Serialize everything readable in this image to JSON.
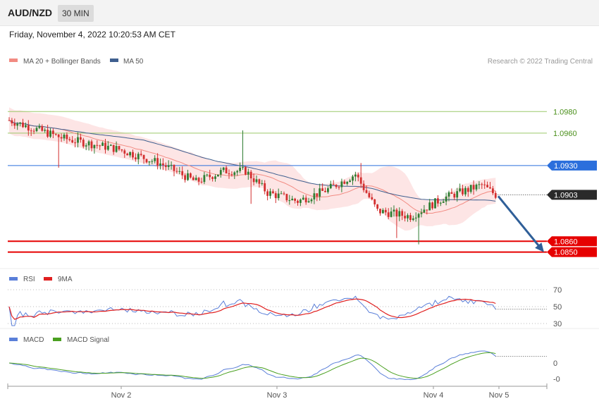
{
  "header": {
    "symbol": "AUD/NZD",
    "timeframe": "30 MIN",
    "datetime": "Friday, November 4, 2022 10:20:53 AM CET"
  },
  "main_legend": {
    "ma20_bb": "MA 20 + Bollinger Bands",
    "ma50": "MA 50",
    "credit": "Research © 2022 Trading Central"
  },
  "rsi_legend": {
    "rsi": "RSI",
    "ma": "9MA"
  },
  "macd_legend": {
    "macd": "MACD",
    "signal": "MACD Signal"
  },
  "colors": {
    "bull": "#2e7d32",
    "bear": "#d32f2f",
    "bollinger": "#fde0e0",
    "ma20": "#f28b82",
    "ma50": "#3f5f8f",
    "green_level": "#9cc96a",
    "blue_level": "#2b6fdc",
    "red_level": "#e60000",
    "arrow": "#2f5f98",
    "rsi": "#5a7fd9",
    "rsi_ma": "#e02020",
    "macd": "#5a7fd9",
    "macd_signal": "#4aa020"
  },
  "x_axis": {
    "labels": [
      "Nov 2",
      "Nov 3",
      "Nov 4",
      "Nov 5"
    ]
  },
  "chart_data": [
    {
      "type": "candlestick",
      "ylim": [
        1.0838,
        1.1018
      ],
      "levels": [
        {
          "value": 1.098,
          "label": "1.0980",
          "style": "green"
        },
        {
          "value": 1.096,
          "label": "1.0960",
          "style": "green"
        },
        {
          "value": 1.093,
          "label": "1.0930",
          "style": "blue"
        },
        {
          "value": 1.086,
          "label": "1.0860",
          "style": "red"
        },
        {
          "value": 1.085,
          "label": "1.0850",
          "style": "red"
        }
      ],
      "current_price": {
        "value": 1.0903,
        "label": "1.0903"
      },
      "forecast_arrow": {
        "from": 1.0903,
        "to": 1.0855
      }
    },
    {
      "type": "line",
      "name": "RSI",
      "ylim": [
        25,
        75
      ],
      "ticks": [
        {
          "value": 70,
          "label": "70"
        },
        {
          "value": 50,
          "label": "50"
        },
        {
          "value": 30,
          "label": "30"
        }
      ]
    },
    {
      "type": "line",
      "name": "MACD",
      "ylim": [
        -0.0012,
        0.001
      ],
      "ticks": [
        {
          "value": 0,
          "label": "0"
        },
        {
          "value": -0.0009,
          "label": "-0"
        }
      ]
    }
  ]
}
